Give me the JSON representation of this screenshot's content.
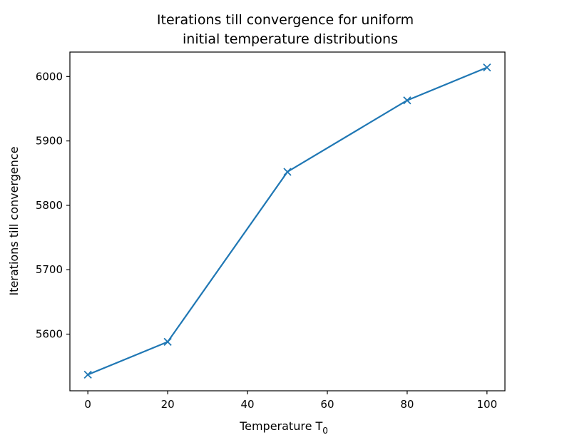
{
  "chart_data": {
    "type": "line",
    "title_line1": "Iterations till convergence for uniform",
    "title_line2": "initial temperature distributions",
    "xlabel": "Temperature T",
    "xlabel_subscript": "0",
    "ylabel": "Iterations till convergence",
    "xlim": [
      -4.5,
      104.5
    ],
    "ylim": [
      5512,
      6038
    ],
    "xticks": [
      0,
      20,
      40,
      60,
      80,
      100
    ],
    "yticks": [
      5600,
      5700,
      5800,
      5900,
      6000
    ],
    "x": [
      0,
      20,
      50,
      80,
      100
    ],
    "series": [
      {
        "values": [
          5537,
          5588,
          5852,
          5963,
          6014
        ],
        "color": "#1f77b4",
        "marker": "x"
      }
    ],
    "grid": false
  }
}
